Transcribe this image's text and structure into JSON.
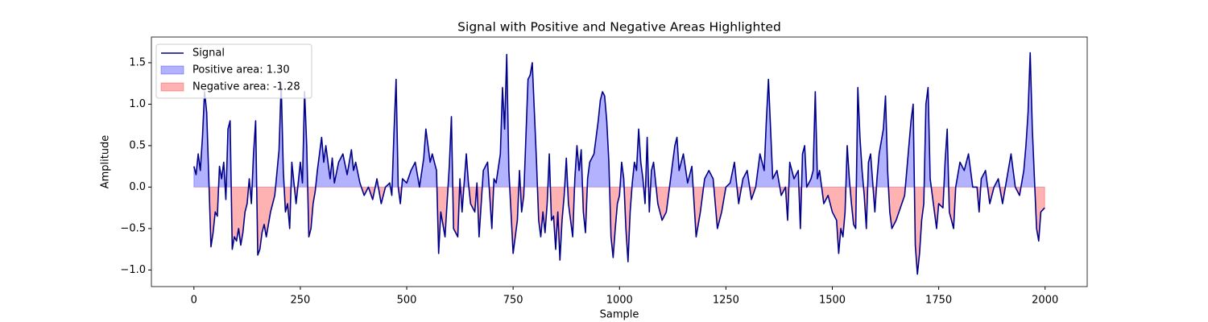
{
  "chart_data": {
    "type": "line",
    "title": "Signal with Positive and Negative Areas Highlighted",
    "xlabel": "Sample",
    "ylabel": "Amplitude",
    "x": [
      0,
      5,
      10,
      15,
      20,
      25,
      30,
      35,
      40,
      45,
      50,
      55,
      60,
      65,
      70,
      75,
      80,
      85,
      90,
      95,
      100,
      105,
      110,
      115,
      120,
      125,
      130,
      135,
      140,
      145,
      150,
      155,
      160,
      165,
      170,
      180,
      190,
      200,
      205,
      210,
      215,
      220,
      225,
      230,
      240,
      250,
      255,
      260,
      265,
      270,
      275,
      280,
      285,
      290,
      300,
      305,
      310,
      320,
      325,
      330,
      340,
      350,
      360,
      370,
      375,
      380,
      390,
      400,
      410,
      420,
      430,
      440,
      450,
      460,
      465,
      470,
      475,
      480,
      485,
      490,
      500,
      510,
      520,
      530,
      540,
      545,
      555,
      560,
      570,
      575,
      580,
      590,
      600,
      605,
      610,
      620,
      625,
      630,
      640,
      645,
      650,
      660,
      665,
      670,
      680,
      690,
      700,
      705,
      710,
      720,
      725,
      730,
      735,
      740,
      745,
      750,
      755,
      760,
      765,
      770,
      775,
      780,
      785,
      790,
      795,
      800,
      805,
      810,
      815,
      820,
      825,
      830,
      835,
      840,
      845,
      850,
      855,
      860,
      865,
      870,
      875,
      880,
      885,
      890,
      895,
      900,
      905,
      910,
      915,
      920,
      925,
      930,
      940,
      945,
      950,
      955,
      960,
      965,
      970,
      975,
      980,
      985,
      990,
      995,
      1000,
      1005,
      1010,
      1015,
      1020,
      1025,
      1030,
      1035,
      1040,
      1045,
      1050,
      1055,
      1060,
      1065,
      1070,
      1075,
      1080,
      1090,
      1100,
      1110,
      1120,
      1130,
      1135,
      1140,
      1150,
      1160,
      1170,
      1180,
      1190,
      1200,
      1210,
      1220,
      1230,
      1240,
      1250,
      1260,
      1270,
      1280,
      1290,
      1300,
      1310,
      1320,
      1330,
      1340,
      1345,
      1350,
      1355,
      1360,
      1370,
      1380,
      1390,
      1395,
      1400,
      1410,
      1420,
      1425,
      1430,
      1435,
      1440,
      1450,
      1455,
      1460,
      1465,
      1470,
      1480,
      1490,
      1500,
      1510,
      1515,
      1520,
      1525,
      1530,
      1535,
      1540,
      1545,
      1550,
      1555,
      1560,
      1565,
      1570,
      1575,
      1580,
      1585,
      1590,
      1600,
      1605,
      1610,
      1620,
      1625,
      1630,
      1635,
      1640,
      1650,
      1660,
      1670,
      1680,
      1685,
      1690,
      1695,
      1700,
      1705,
      1710,
      1715,
      1720,
      1725,
      1730,
      1740,
      1745,
      1750,
      1760,
      1765,
      1770,
      1775,
      1780,
      1785,
      1790,
      1800,
      1810,
      1820,
      1830,
      1840,
      1845,
      1850,
      1860,
      1870,
      1880,
      1890,
      1900,
      1910,
      1920,
      1930,
      1940,
      1950,
      1955,
      1960,
      1965,
      1970,
      1975,
      1980,
      1985,
      1990,
      1999
    ],
    "series": [
      {
        "name": "Signal",
        "color": "#00008b",
        "values": [
          0.25,
          0.15,
          0.4,
          0.2,
          0.6,
          1.15,
          0.9,
          0.1,
          -0.72,
          -0.55,
          -0.3,
          -0.35,
          0.25,
          0.1,
          0.3,
          -0.15,
          0.7,
          0.8,
          -0.75,
          -0.6,
          -0.65,
          -0.5,
          -0.7,
          -0.55,
          -0.3,
          -0.2,
          0.1,
          -0.2,
          0.4,
          0.8,
          -0.82,
          -0.75,
          -0.55,
          -0.45,
          -0.6,
          -0.3,
          -0.1,
          0.45,
          1.25,
          0.2,
          -0.3,
          -0.2,
          -0.5,
          0.3,
          -0.2,
          0.3,
          0.05,
          1.15,
          0.5,
          -0.6,
          -0.5,
          -0.2,
          -0.05,
          0.2,
          0.6,
          0.3,
          0.5,
          0.1,
          0.35,
          0.05,
          0.3,
          0.4,
          0.15,
          0.45,
          0.2,
          0.3,
          0.05,
          -0.1,
          0.0,
          -0.15,
          0.1,
          -0.2,
          0.0,
          0.05,
          -0.1,
          0.65,
          1.3,
          0.0,
          -0.2,
          0.1,
          0.05,
          0.2,
          0.3,
          0.0,
          0.35,
          0.7,
          0.3,
          0.4,
          0.2,
          -0.8,
          -0.3,
          -0.6,
          0.25,
          0.85,
          -0.5,
          -0.6,
          0.1,
          -0.3,
          0.4,
          0.05,
          -0.2,
          -0.3,
          0.05,
          -0.6,
          0.2,
          0.3,
          -0.5,
          0.1,
          0.05,
          0.4,
          1.2,
          0.7,
          1.6,
          0.2,
          -0.3,
          -0.8,
          -0.6,
          -0.4,
          0.2,
          -0.3,
          -0.1,
          0.6,
          1.3,
          1.35,
          1.5,
          0.9,
          0.3,
          -0.4,
          -0.6,
          -0.3,
          -0.55,
          -0.2,
          0.4,
          -0.4,
          -0.35,
          -0.75,
          -0.3,
          -0.88,
          -0.4,
          -0.1,
          0.35,
          -0.2,
          -0.4,
          -0.6,
          0.1,
          0.5,
          0.2,
          0.45,
          -0.3,
          -0.55,
          0.1,
          0.3,
          0.4,
          0.6,
          0.8,
          1.05,
          1.15,
          1.1,
          0.8,
          0.3,
          -0.6,
          -0.85,
          -0.5,
          -0.2,
          -0.1,
          0.3,
          0.1,
          -0.5,
          -0.9,
          -0.3,
          0.05,
          0.3,
          0.2,
          0.7,
          0.3,
          0.1,
          -0.2,
          0.6,
          -0.3,
          0.2,
          0.3,
          -0.2,
          -0.4,
          -0.3,
          0.1,
          0.5,
          0.6,
          0.2,
          0.4,
          0.05,
          0.25,
          -0.6,
          -0.3,
          0.1,
          0.2,
          0.1,
          -0.5,
          -0.3,
          0.0,
          0.05,
          0.3,
          -0.2,
          0.1,
          0.2,
          -0.15,
          0.0,
          0.4,
          0.2,
          0.8,
          1.3,
          0.7,
          0.1,
          0.2,
          -0.1,
          0.0,
          -0.4,
          0.3,
          0.1,
          0.2,
          -0.5,
          0.4,
          0.5,
          0.0,
          0.1,
          0.2,
          1.15,
          0.1,
          0.2,
          -0.2,
          -0.1,
          -0.3,
          -0.4,
          -0.8,
          -0.5,
          -0.6,
          -0.3,
          0.5,
          0.1,
          -0.2,
          -0.45,
          -0.5,
          1.2,
          0.6,
          0.2,
          -0.1,
          -0.5,
          0.3,
          0.4,
          -0.3,
          0.1,
          0.4,
          0.7,
          1.1,
          0.2,
          -0.3,
          -0.5,
          -0.4,
          -0.25,
          -0.1,
          0.5,
          0.8,
          1.0,
          -0.7,
          -1.05,
          -0.8,
          -0.4,
          -0.2,
          1.0,
          1.2,
          0.1,
          -0.3,
          -0.5,
          -0.2,
          -0.25,
          0.3,
          0.7,
          -0.3,
          -0.4,
          -0.5,
          0.0,
          0.3,
          0.2,
          0.4,
          0.0,
          0.0,
          -0.3,
          0.1,
          0.2,
          -0.2,
          0.0,
          0.1,
          -0.2,
          0.1,
          0.4,
          0.0,
          -0.1,
          0.2,
          0.5,
          0.9,
          1.62,
          0.7,
          0.1,
          -0.5,
          -0.65,
          -0.3,
          -0.25
        ]
      }
    ],
    "areas": [
      {
        "name": "Positive area: 1.30",
        "color": "#0000ff",
        "sign": "positive"
      },
      {
        "name": "Negative area: -1.28",
        "color": "#ff0000",
        "sign": "negative"
      }
    ],
    "xlim": [
      -99.95,
      2098.95
    ],
    "ylim": [
      -1.2,
      1.81
    ],
    "xticks": [
      0,
      250,
      500,
      750,
      1000,
      1250,
      1500,
      1750,
      2000
    ],
    "yticks": [
      {
        "value": -1.0,
        "label": "−1.0"
      },
      {
        "value": -0.5,
        "label": "−0.5"
      },
      {
        "value": 0.0,
        "label": "0.0"
      },
      {
        "value": 0.5,
        "label": "0.5"
      },
      {
        "value": 1.0,
        "label": "1.0"
      },
      {
        "value": 1.5,
        "label": "1.5"
      }
    ],
    "legend": "upper left"
  }
}
